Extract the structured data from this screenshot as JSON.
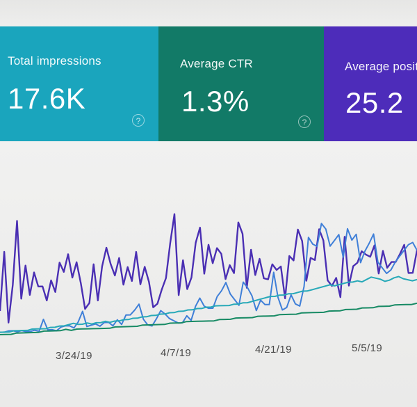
{
  "metrics": [
    {
      "label": "Total impressions",
      "value": "17.6K",
      "help_icon": "help-circle-icon"
    },
    {
      "label": "Average CTR",
      "value": "1.3%",
      "help_icon": "help-circle-icon"
    },
    {
      "label": "Average positi",
      "value": "25.2"
    }
  ],
  "colors": {
    "impressions": "#1aa5bd",
    "ctr": "#127a67",
    "position": "#4d2cba",
    "clicks": "#3f7fd8"
  },
  "chart_data": {
    "type": "line",
    "x_tick_labels": [
      "3/24/19",
      "4/7/19",
      "4/21/19",
      "5/5/19"
    ],
    "series": [
      {
        "color": "#4a2fb3",
        "values": [
          20,
          70,
          10,
          42,
          96,
          30,
          58,
          33,
          52,
          40,
          40,
          28,
          45,
          35,
          60,
          52,
          67,
          47,
          60,
          42,
          20,
          25,
          58,
          27,
          56,
          72,
          58,
          48,
          63,
          40,
          55,
          43,
          68,
          40,
          55,
          42,
          20,
          23,
          35,
          45,
          75,
          100,
          30,
          60,
          35,
          45,
          75,
          88,
          48,
          73,
          57,
          70,
          65,
          43,
          55,
          48,
          92,
          82,
          35,
          68,
          46,
          60,
          43,
          42,
          55,
          50,
          53,
          25,
          62,
          58,
          85,
          75,
          40,
          60,
          58,
          85,
          75,
          40,
          35,
          42,
          25,
          78,
          35,
          52,
          55,
          65,
          62,
          60,
          70,
          45,
          65,
          50,
          55,
          55,
          62,
          70,
          45,
          45,
          65
        ]
      },
      {
        "color": "#3f7fd8",
        "values": [
          2,
          2,
          3,
          3,
          2,
          3,
          2,
          2,
          3,
          2,
          12,
          3,
          3,
          2,
          5,
          6,
          6,
          4,
          9,
          18,
          5,
          6,
          7,
          5,
          8,
          8,
          5,
          10,
          6,
          14,
          14,
          18,
          23,
          10,
          5,
          4,
          10,
          17,
          14,
          10,
          8,
          6,
          6,
          12,
          8,
          20,
          27,
          20,
          18,
          18,
          28,
          33,
          40,
          30,
          25,
          20,
          40,
          35,
          28,
          15,
          24,
          20,
          20,
          48,
          26,
          15,
          17,
          28,
          20,
          18,
          35,
          78,
          72,
          70,
          90,
          85,
          70,
          75,
          80,
          60,
          85,
          75,
          80,
          55,
          65,
          72,
          80,
          55,
          50,
          45,
          48,
          55,
          60,
          65,
          70,
          72,
          65
        ]
      },
      {
        "color": "#27a9b8",
        "values": [
          2,
          2,
          2,
          3,
          3,
          3,
          3,
          4,
          4,
          4,
          4,
          5,
          5,
          6,
          6,
          7,
          8,
          7,
          7,
          8,
          7,
          8,
          8,
          9,
          8,
          9,
          9,
          10,
          10,
          11,
          11,
          12,
          12,
          13,
          13,
          14,
          14,
          15,
          15,
          16,
          16,
          17,
          17,
          18,
          18,
          19,
          19,
          20,
          20,
          20,
          20,
          21,
          21,
          22,
          22,
          23,
          24,
          25,
          26,
          27,
          27,
          28,
          28,
          29,
          29,
          30,
          31,
          31,
          32,
          33,
          34,
          35,
          36,
          35,
          36,
          37,
          38,
          38,
          39,
          38,
          40,
          42,
          41,
          40,
          38,
          39,
          41,
          42,
          40,
          39,
          38,
          39
        ]
      },
      {
        "color": "#178a64",
        "values": [
          0,
          0,
          0,
          1,
          1,
          1,
          1,
          1,
          2,
          2,
          2,
          2,
          3,
          2,
          3,
          3,
          3,
          3,
          3,
          3,
          3,
          4,
          4,
          4,
          4,
          4,
          5,
          5,
          5,
          5,
          5,
          6,
          6,
          6,
          7,
          7,
          7,
          7,
          7,
          7,
          8,
          8,
          8,
          9,
          9,
          9,
          9,
          10,
          10,
          10,
          10,
          11,
          11,
          11,
          11,
          12,
          12,
          12,
          12,
          12,
          13,
          13,
          13,
          14,
          14,
          14,
          15,
          15,
          15,
          16,
          16,
          16,
          17,
          17,
          17,
          17,
          18
        ]
      }
    ]
  }
}
